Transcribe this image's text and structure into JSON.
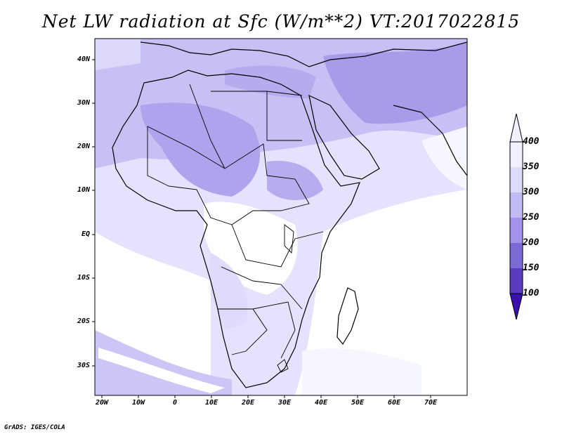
{
  "title": "Net LW radiation at Sfc (W/m**2) VT:2017022815",
  "credit": "GrADS: IGES/COLA",
  "latitude_labels": [
    "40N",
    "30N",
    "20N",
    "10N",
    "EQ",
    "10S",
    "20S",
    "30S"
  ],
  "longitude_labels": [
    "20W",
    "10W",
    "0",
    "10E",
    "20E",
    "30E",
    "40E",
    "50E",
    "60E",
    "70E"
  ],
  "colorbar": {
    "labels": [
      "400",
      "350",
      "300",
      "250",
      "200",
      "150",
      "100"
    ],
    "colors": [
      "#f2f0ff",
      "#dcdcfa",
      "#c2baf2",
      "#a292ea",
      "#7b6ad6",
      "#5a3cc2",
      "#3a10b0"
    ]
  },
  "map_colors": {
    "ocean_high": "#ffffff",
    "level_350_400": "#e2e2fc",
    "level_300_350": "#c4bcf4",
    "level_250_300": "#a898ea",
    "coastline": "#000000"
  }
}
